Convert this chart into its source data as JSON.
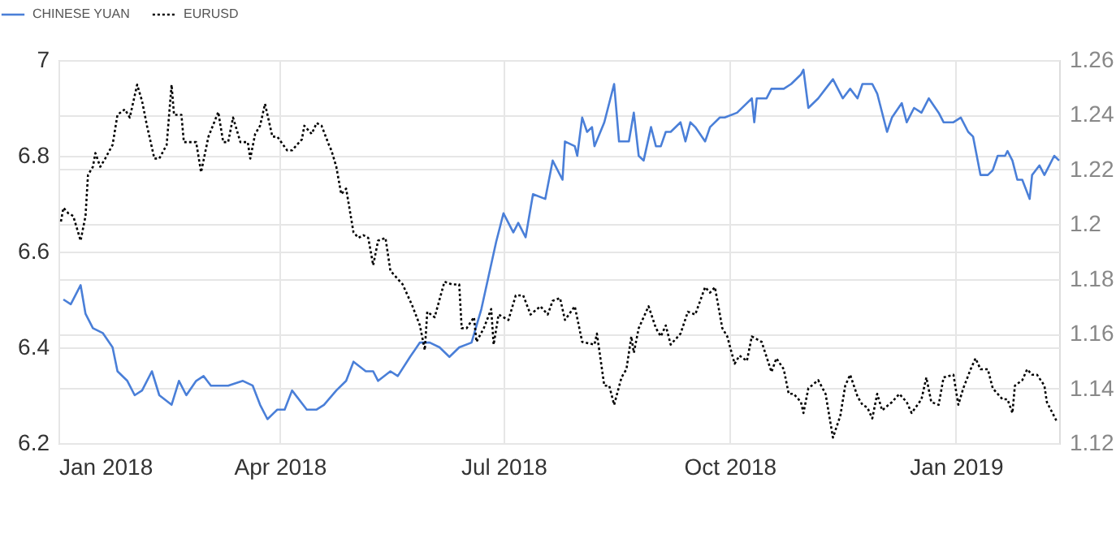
{
  "chart_data": {
    "type": "line",
    "xlim": [
      "2018-01-01",
      "2019-02-12"
    ],
    "xticks": [
      {
        "value": "2018-01-01",
        "label": "Jan 2018"
      },
      {
        "value": "2018-04-01",
        "label": "Apr 2018"
      },
      {
        "value": "2018-07-01",
        "label": "Jul 2018"
      },
      {
        "value": "2018-10-01",
        "label": "Oct 2018"
      },
      {
        "value": "2019-01-01",
        "label": "Jan 2019"
      }
    ],
    "ylim": [
      6.2,
      7
    ],
    "yticks": [
      6.2,
      6.4,
      6.6,
      6.8,
      7
    ],
    "y2lim": [
      1.12,
      1.26
    ],
    "y2ticks": [
      1.12,
      1.14,
      1.16,
      1.18,
      1.2,
      1.22,
      1.24,
      1.26
    ],
    "grid": true,
    "legend": "top left",
    "series": [
      {
        "name": "CHINESE YUAN",
        "color": "#4a7fd8",
        "line_style": "solid",
        "axis": "y",
        "x": [
          "2018-01-03",
          "2018-01-06",
          "2018-01-10",
          "2018-01-12",
          "2018-01-15",
          "2018-01-19",
          "2018-01-23",
          "2018-01-25",
          "2018-01-29",
          "2018-02-01",
          "2018-02-04",
          "2018-02-08",
          "2018-02-11",
          "2018-02-16",
          "2018-02-19",
          "2018-02-22",
          "2018-02-26",
          "2018-03-01",
          "2018-03-04",
          "2018-03-11",
          "2018-03-17",
          "2018-03-21",
          "2018-03-24",
          "2018-03-27",
          "2018-03-31",
          "2018-04-03",
          "2018-04-06",
          "2018-04-12",
          "2018-04-16",
          "2018-04-19",
          "2018-04-24",
          "2018-04-28",
          "2018-05-01",
          "2018-05-06",
          "2018-05-09",
          "2018-05-11",
          "2018-05-16",
          "2018-05-19",
          "2018-05-24",
          "2018-05-28",
          "2018-06-01",
          "2018-06-05",
          "2018-06-09",
          "2018-06-13",
          "2018-06-18",
          "2018-06-22",
          "2018-06-25",
          "2018-06-28",
          "2018-07-01",
          "2018-07-05",
          "2018-07-07",
          "2018-07-10",
          "2018-07-13",
          "2018-07-18",
          "2018-07-21",
          "2018-07-25",
          "2018-07-26",
          "2018-07-30",
          "2018-07-31",
          "2018-08-02",
          "2018-08-04",
          "2018-08-06",
          "2018-08-07",
          "2018-08-11",
          "2018-08-15",
          "2018-08-17",
          "2018-08-21",
          "2018-08-23",
          "2018-08-25",
          "2018-08-27",
          "2018-08-30",
          "2018-09-01",
          "2018-09-03",
          "2018-09-05",
          "2018-09-07",
          "2018-09-11",
          "2018-09-13",
          "2018-09-15",
          "2018-09-17",
          "2018-09-21",
          "2018-09-23",
          "2018-09-27",
          "2018-09-29",
          "2018-10-04",
          "2018-10-08",
          "2018-10-10",
          "2018-10-11",
          "2018-10-12",
          "2018-10-16",
          "2018-10-18",
          "2018-10-23",
          "2018-10-26",
          "2018-10-30",
          "2018-10-31",
          "2018-11-02",
          "2018-11-06",
          "2018-11-09",
          "2018-11-12",
          "2018-11-16",
          "2018-11-19",
          "2018-11-22",
          "2018-11-24",
          "2018-11-28",
          "2018-11-30",
          "2018-12-04",
          "2018-12-06",
          "2018-12-10",
          "2018-12-12",
          "2018-12-15",
          "2018-12-18",
          "2018-12-21",
          "2018-12-25",
          "2018-12-27",
          "2018-12-31",
          "2019-01-03",
          "2019-01-06",
          "2019-01-08",
          "2019-01-11",
          "2019-01-14",
          "2019-01-16",
          "2019-01-18",
          "2019-01-21",
          "2019-01-22",
          "2019-01-24",
          "2019-01-26",
          "2019-01-28",
          "2019-01-31",
          "2019-02-01",
          "2019-02-04",
          "2019-02-06",
          "2019-02-08",
          "2019-02-10",
          "2019-02-12"
        ],
        "values": [
          6.5,
          6.49,
          6.53,
          6.47,
          6.44,
          6.43,
          6.4,
          6.35,
          6.33,
          6.3,
          6.31,
          6.35,
          6.3,
          6.28,
          6.33,
          6.3,
          6.33,
          6.34,
          6.32,
          6.32,
          6.33,
          6.32,
          6.28,
          6.25,
          6.27,
          6.27,
          6.31,
          6.27,
          6.27,
          6.28,
          6.31,
          6.33,
          6.37,
          6.35,
          6.35,
          6.33,
          6.35,
          6.34,
          6.38,
          6.41,
          6.41,
          6.4,
          6.38,
          6.4,
          6.41,
          6.48,
          6.55,
          6.62,
          6.68,
          6.64,
          6.66,
          6.63,
          6.72,
          6.71,
          6.79,
          6.75,
          6.83,
          6.82,
          6.8,
          6.88,
          6.85,
          6.86,
          6.82,
          6.87,
          6.95,
          6.83,
          6.83,
          6.89,
          6.8,
          6.79,
          6.86,
          6.82,
          6.82,
          6.85,
          6.85,
          6.87,
          6.83,
          6.87,
          6.86,
          6.83,
          6.86,
          6.88,
          6.88,
          6.89,
          6.91,
          6.92,
          6.87,
          6.92,
          6.92,
          6.94,
          6.94,
          6.95,
          6.97,
          6.98,
          6.9,
          6.92,
          6.94,
          6.96,
          6.92,
          6.94,
          6.92,
          6.95,
          6.95,
          6.93,
          6.85,
          6.88,
          6.91,
          6.87,
          6.9,
          6.89,
          6.92,
          6.89,
          6.87,
          6.87,
          6.88,
          6.85,
          6.84,
          6.76,
          6.76,
          6.77,
          6.8,
          6.8,
          6.81,
          6.79,
          6.75,
          6.75,
          6.71,
          6.76,
          6.78,
          6.76,
          6.78,
          6.8,
          6.79
        ]
      },
      {
        "name": "EURUSD",
        "color": "#000000",
        "line_style": "dotted",
        "axis": "y2",
        "x": [
          "2018-01-02",
          "2018-01-03",
          "2018-01-05",
          "2018-01-07",
          "2018-01-10",
          "2018-01-12",
          "2018-01-13",
          "2018-01-15",
          "2018-01-16",
          "2018-01-18",
          "2018-01-20",
          "2018-01-23",
          "2018-01-25",
          "2018-01-28",
          "2018-01-30",
          "2018-02-02",
          "2018-02-04",
          "2018-02-06",
          "2018-02-09",
          "2018-02-11",
          "2018-02-14",
          "2018-02-16",
          "2018-02-17",
          "2018-02-20",
          "2018-02-21",
          "2018-02-24",
          "2018-02-26",
          "2018-02-28",
          "2018-03-03",
          "2018-03-07",
          "2018-03-09",
          "2018-03-11",
          "2018-03-13",
          "2018-03-16",
          "2018-03-19",
          "2018-03-20",
          "2018-03-22",
          "2018-03-24",
          "2018-03-26",
          "2018-03-29",
          "2018-03-31",
          "2018-04-04",
          "2018-04-06",
          "2018-04-10",
          "2018-04-11",
          "2018-04-14",
          "2018-04-16",
          "2018-04-18",
          "2018-04-21",
          "2018-04-22",
          "2018-04-24",
          "2018-04-26",
          "2018-04-28",
          "2018-05-01",
          "2018-05-03",
          "2018-05-05",
          "2018-05-07",
          "2018-05-09",
          "2018-05-11",
          "2018-05-14",
          "2018-05-16",
          "2018-05-21",
          "2018-05-25",
          "2018-05-28",
          "2018-05-30",
          "2018-05-31",
          "2018-06-03",
          "2018-06-07",
          "2018-06-10",
          "2018-06-13",
          "2018-06-14",
          "2018-06-16",
          "2018-06-19",
          "2018-06-20",
          "2018-06-23",
          "2018-06-26",
          "2018-06-27",
          "2018-06-29",
          "2018-07-03",
          "2018-07-06",
          "2018-07-09",
          "2018-07-12",
          "2018-07-16",
          "2018-07-19",
          "2018-07-21",
          "2018-07-24",
          "2018-07-26",
          "2018-07-30",
          "2018-08-02",
          "2018-08-07",
          "2018-08-08",
          "2018-08-11",
          "2018-08-13",
          "2018-08-15",
          "2018-08-18",
          "2018-08-20",
          "2018-08-22",
          "2018-08-23",
          "2018-08-25",
          "2018-08-29",
          "2018-09-01",
          "2018-09-03",
          "2018-09-05",
          "2018-09-07",
          "2018-09-11",
          "2018-09-14",
          "2018-09-17",
          "2018-09-21",
          "2018-09-23",
          "2018-09-25",
          "2018-09-28",
          "2018-09-30",
          "2018-10-03",
          "2018-10-05",
          "2018-10-08",
          "2018-10-10",
          "2018-10-14",
          "2018-10-18",
          "2018-10-20",
          "2018-10-23",
          "2018-10-25",
          "2018-10-27",
          "2018-10-30",
          "2018-10-31",
          "2018-11-02",
          "2018-11-06",
          "2018-11-09",
          "2018-11-12",
          "2018-11-15",
          "2018-11-17",
          "2018-11-19",
          "2018-11-22",
          "2018-11-24",
          "2018-11-26",
          "2018-11-28",
          "2018-11-30",
          "2018-12-02",
          "2018-12-06",
          "2018-12-09",
          "2018-12-12",
          "2018-12-14",
          "2018-12-18",
          "2018-12-20",
          "2018-12-22",
          "2018-12-25",
          "2018-12-27",
          "2018-12-31",
          "2019-01-02",
          "2019-01-04",
          "2019-01-07",
          "2019-01-09",
          "2019-01-11",
          "2019-01-14",
          "2019-01-16",
          "2019-01-20",
          "2019-01-22",
          "2019-01-24",
          "2019-01-25",
          "2019-01-28",
          "2019-01-30",
          "2019-02-01",
          "2019-02-03",
          "2019-02-06",
          "2019-02-07",
          "2019-02-11"
        ],
        "values": [
          1.201,
          1.206,
          1.204,
          1.203,
          1.194,
          1.203,
          1.218,
          1.221,
          1.226,
          1.221,
          1.224,
          1.229,
          1.24,
          1.242,
          1.239,
          1.251,
          1.245,
          1.236,
          1.224,
          1.224,
          1.229,
          1.251,
          1.24,
          1.24,
          1.23,
          1.23,
          1.23,
          1.219,
          1.232,
          1.241,
          1.23,
          1.23,
          1.239,
          1.23,
          1.23,
          1.224,
          1.233,
          1.236,
          1.244,
          1.232,
          1.232,
          1.227,
          1.227,
          1.231,
          1.236,
          1.233,
          1.237,
          1.236,
          1.229,
          1.227,
          1.221,
          1.211,
          1.213,
          1.197,
          1.195,
          1.196,
          1.195,
          1.185,
          1.194,
          1.195,
          1.183,
          1.178,
          1.17,
          1.163,
          1.154,
          1.168,
          1.166,
          1.179,
          1.178,
          1.178,
          1.162,
          1.162,
          1.166,
          1.157,
          1.162,
          1.169,
          1.156,
          1.167,
          1.165,
          1.174,
          1.174,
          1.167,
          1.17,
          1.167,
          1.172,
          1.173,
          1.165,
          1.17,
          1.157,
          1.156,
          1.16,
          1.141,
          1.141,
          1.134,
          1.144,
          1.147,
          1.159,
          1.153,
          1.162,
          1.17,
          1.162,
          1.159,
          1.163,
          1.156,
          1.16,
          1.168,
          1.167,
          1.177,
          1.175,
          1.177,
          1.162,
          1.159,
          1.149,
          1.152,
          1.15,
          1.159,
          1.157,
          1.146,
          1.151,
          1.147,
          1.138,
          1.138,
          1.135,
          1.131,
          1.14,
          1.143,
          1.138,
          1.122,
          1.13,
          1.141,
          1.145,
          1.137,
          1.134,
          1.133,
          1.129,
          1.138,
          1.132,
          1.135,
          1.138,
          1.135,
          1.131,
          1.136,
          1.144,
          1.135,
          1.134,
          1.144,
          1.145,
          1.134,
          1.14,
          1.147,
          1.151,
          1.147,
          1.147,
          1.14,
          1.136,
          1.136,
          1.131,
          1.141,
          1.143,
          1.147,
          1.145,
          1.145,
          1.141,
          1.135,
          1.128
        ]
      }
    ]
  }
}
